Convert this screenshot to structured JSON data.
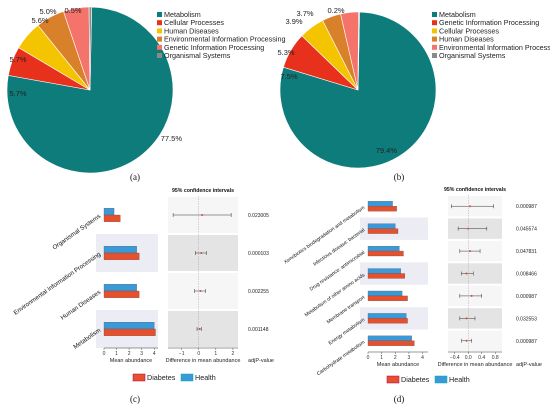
{
  "panel_labels": [
    "(a)",
    "(b)",
    "(c)",
    "(d)"
  ],
  "chart_data": [
    {
      "type": "pie",
      "panel": "(a)",
      "categories": [
        "Metabolism",
        "Cellular Processes",
        "Human Diseases",
        "Environmental Information Processing",
        "Genetic Information Processing",
        "Organismal Systems"
      ],
      "values": [
        77.5,
        5.7,
        5.7,
        5.6,
        5.0,
        0.5
      ],
      "labels": [
        "77.5%",
        "5.7%",
        "5.7%",
        "5.6%",
        "5.0%",
        "0.5%"
      ],
      "colors": [
        "#0f7c7c",
        "#e8311c",
        "#f5c400",
        "#d9802a",
        "#f4736a",
        "#8a8a8a"
      ],
      "legend_position": "right"
    },
    {
      "type": "pie",
      "panel": "(b)",
      "categories": [
        "Metabolism",
        "Genetic Information Processing",
        "Cellular Processes",
        "Human Diseases",
        "Environmental Information Processing",
        "Organismal Systems"
      ],
      "values": [
        79.4,
        7.5,
        5.3,
        3.9,
        3.7,
        0.2
      ],
      "labels": [
        "79.4%",
        "7.5%",
        "5.3%",
        "3.9%",
        "3.7%",
        "0.2%"
      ],
      "colors": [
        "#0f7c7c",
        "#e8311c",
        "#f5c400",
        "#d9802a",
        "#f4736a",
        "#8a8a8a"
      ],
      "legend_position": "right"
    },
    {
      "type": "bar",
      "panel": "(c)",
      "orientation": "horizontal",
      "categories": [
        "Organismal Systems",
        "Environmental Information Processing",
        "Human Diseases",
        "Metabolism"
      ],
      "series": [
        {
          "name": "Diabetes",
          "values": [
            1.3,
            2.8,
            2.8,
            4.1
          ],
          "color": "#e8502d"
        },
        {
          "name": "Health",
          "values": [
            0.8,
            2.6,
            2.6,
            4.0
          ],
          "color": "#3a9ad9"
        }
      ],
      "xlabel": "Mean abundance",
      "xticks": [
        "0",
        "1",
        "2",
        "3",
        "4"
      ],
      "xlim": [
        0,
        4.3
      ],
      "ci_title": "95% confidence intervals",
      "ci_xlabel": "Difference in mean abundance",
      "ci_xticks": [
        "−1",
        "0",
        "1",
        "2"
      ],
      "ci_xlim": [
        -1.8,
        2.3
      ],
      "ci_diff": [
        0.2,
        0.15,
        0.1,
        0.05
      ],
      "ci_low": [
        -1.5,
        -0.2,
        -0.25,
        -0.1
      ],
      "ci_high": [
        1.9,
        0.45,
        0.4,
        0.15
      ],
      "pvalue_label": "adjP-value",
      "pvalues": [
        "0.023005",
        "0.000103",
        "0.002255",
        "0.001148"
      ],
      "legend": [
        "Diabetes",
        "Health"
      ]
    },
    {
      "type": "bar",
      "panel": "(d)",
      "orientation": "horizontal",
      "categories": [
        "Xenobiotics biodegradation and metabolism",
        "Infectious disease: bacterial",
        "Drug resistance: antimicrobial",
        "Metabolism of other amino acids",
        "Membrane transport",
        "Energy metabolism",
        "Carbohydrate metabolism"
      ],
      "series": [
        {
          "name": "Diabetes",
          "values": [
            2.1,
            2.2,
            2.6,
            2.7,
            2.9,
            2.9,
            3.4
          ],
          "color": "#e8502d"
        },
        {
          "name": "Health",
          "values": [
            1.8,
            2.0,
            2.3,
            2.4,
            2.5,
            2.8,
            3.2
          ],
          "color": "#3a9ad9"
        }
      ],
      "xlabel": "Mean abundance",
      "xticks": [
        "0",
        "1",
        "2",
        "3",
        "4"
      ],
      "xlim": [
        0,
        4.4
      ],
      "ci_title": "95% confidence intervals",
      "ci_xlabel": "Difference in mean abundance",
      "ci_xticks": [
        "−0.4",
        "0.0",
        "0.4",
        "0.8"
      ],
      "ci_xlim": [
        -0.6,
        1.0
      ],
      "ci_diff": [
        0.05,
        0.0,
        0.05,
        -0.05,
        0.1,
        -0.05,
        -0.05
      ],
      "ci_low": [
        -0.5,
        -0.3,
        -0.25,
        -0.2,
        -0.25,
        -0.25,
        -0.2
      ],
      "ci_high": [
        0.75,
        0.55,
        0.35,
        0.15,
        0.4,
        0.2,
        0.1
      ],
      "pvalue_label": "adjP-value",
      "pvalues": [
        "0.000987",
        "0.045574",
        "0.047831",
        "0.008466",
        "0.000987",
        "0.032553",
        "0.000987"
      ],
      "legend": [
        "Diabetes",
        "Health"
      ]
    }
  ]
}
